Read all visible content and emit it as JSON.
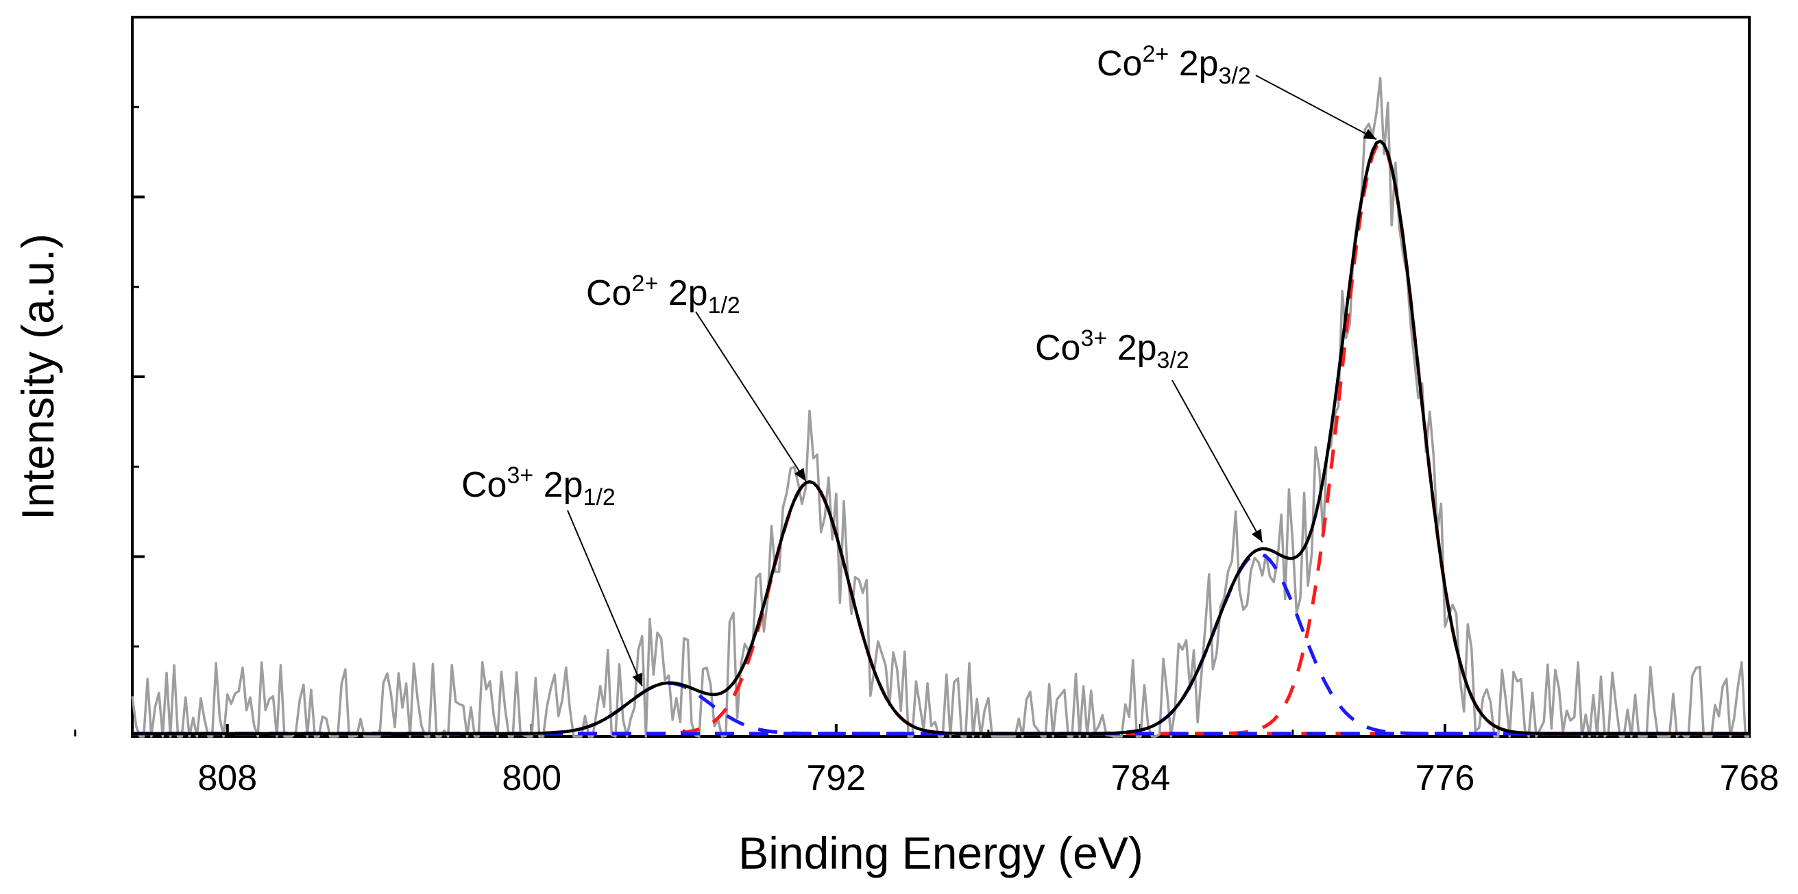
{
  "chart_data": {
    "type": "line",
    "title": "",
    "xlabel": "Binding Energy (eV)",
    "ylabel": "Intensity (a.u.)",
    "xlim": [
      810.5,
      768
    ],
    "ylim": [
      0,
      100
    ],
    "x_ticks": [
      808,
      800,
      792,
      784,
      776,
      768
    ],
    "x_tick_labels": [
      "808",
      "800",
      "792",
      "784",
      "776",
      "768"
    ],
    "y_tick_labels_shown": false,
    "baseline": 0.4,
    "raw_noise_amplitude": 9,
    "raw_seed": 17,
    "series": [
      {
        "name": "raw data",
        "role": "raw",
        "color": "#9e9e9e",
        "dash": "solid"
      },
      {
        "name": "Co2+ 2p3/2",
        "role": "component",
        "color": "#ff1a1a",
        "dash": "dashed",
        "center": 777.7,
        "height": 82,
        "fwhm": 2.4
      },
      {
        "name": "Co2+ 2p1/2",
        "role": "component",
        "color": "#ff1a1a",
        "dash": "dashed",
        "center": 792.7,
        "height": 35,
        "fwhm": 2.4
      },
      {
        "name": "Co3+ 2p3/2",
        "role": "component",
        "color": "#1a1aff",
        "dash": "dashed",
        "center": 780.9,
        "height": 25,
        "fwhm": 2.6
      },
      {
        "name": "Co3+ 2p1/2",
        "role": "component",
        "color": "#1a1aff",
        "dash": "dashed",
        "center": 796.4,
        "height": 7,
        "fwhm": 2.5
      },
      {
        "name": "envelope",
        "role": "envelope",
        "color": "#000000",
        "dash": "solid"
      }
    ],
    "annotations": [
      {
        "base": "Co",
        "sup": "2+",
        "mid": " 2p",
        "sub": "3/2",
        "point_x": 777.8,
        "point_y": 83
      },
      {
        "base": "Co",
        "sup": "2+",
        "mid": " 2p",
        "sub": "1/2",
        "point_x": 792.8,
        "point_y": 35.5
      },
      {
        "base": "Co",
        "sup": "3+",
        "mid": " 2p",
        "sub": "3/2",
        "point_x": 780.8,
        "point_y": 27
      },
      {
        "base": "Co",
        "sup": "3+",
        "mid": " 2p",
        "sub": "1/2",
        "point_x": 797.1,
        "point_y": 7
      }
    ]
  }
}
